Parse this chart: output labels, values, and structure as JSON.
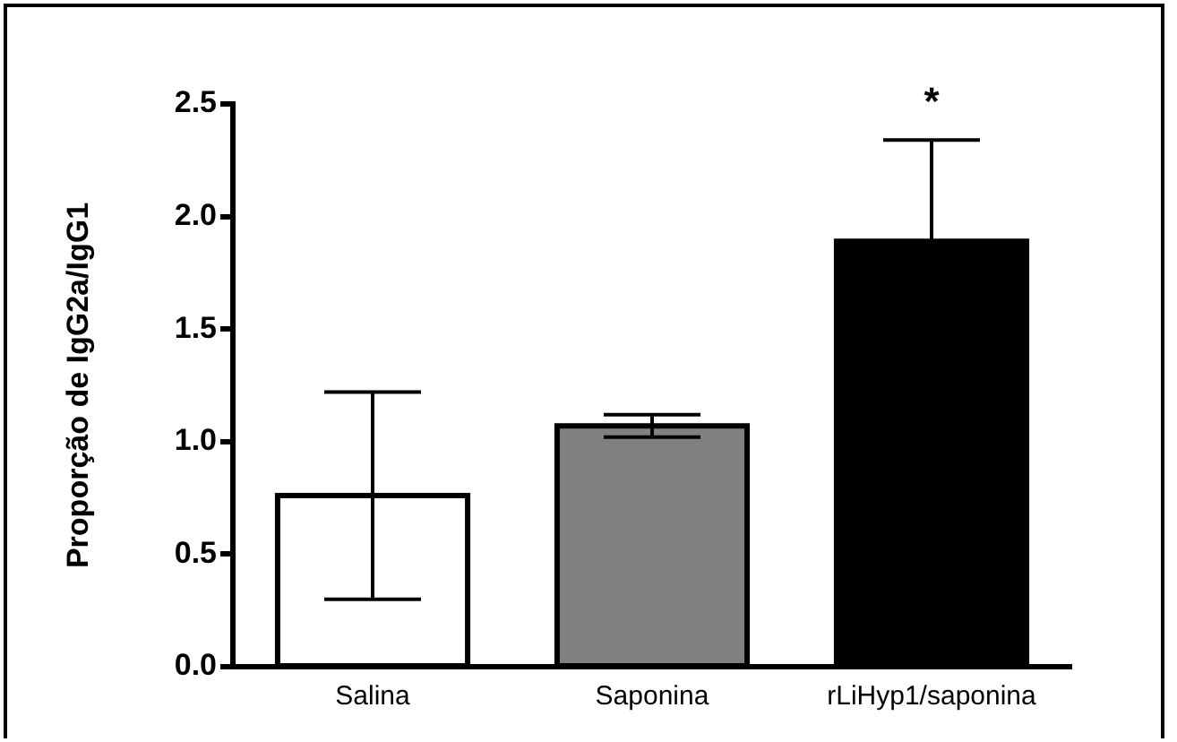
{
  "chart_data": {
    "type": "bar",
    "ylabel": "Proporção de IgG2a/IgG1",
    "categories": [
      "Salina",
      "Saponina",
      "rLiHyp1/saponina"
    ],
    "values": [
      0.76,
      1.07,
      1.89
    ],
    "colors": [
      "#ffffff",
      "#808080",
      "#000000"
    ],
    "errors": [
      [
        0.3,
        1.22
      ],
      [
        1.02,
        1.12
      ],
      [
        1.89,
        2.34
      ]
    ],
    "ylim": [
      0,
      2.5
    ],
    "yticks": [
      {
        "value": 0,
        "label": "0.0"
      },
      {
        "value": 0.5,
        "label": "0.5"
      },
      {
        "value": 1,
        "label": "1.0"
      },
      {
        "value": 1.5,
        "label": "1.5"
      },
      {
        "value": 2,
        "label": "2.0"
      },
      {
        "value": 2.5,
        "label": "2.5"
      }
    ],
    "grid": false,
    "legend": false,
    "annotations": [
      "*"
    ]
  }
}
